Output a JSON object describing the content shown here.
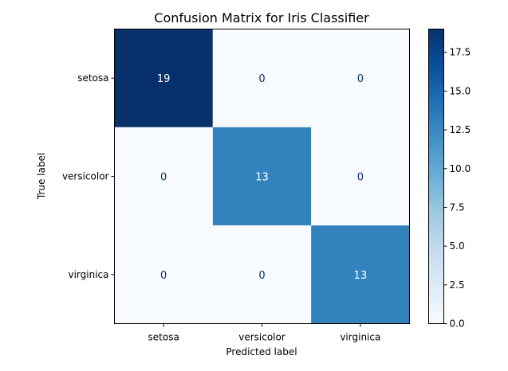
{
  "chart_data": {
    "type": "heatmap",
    "title": "Confusion Matrix for Iris Classifier",
    "xlabel": "Predicted label",
    "ylabel": "True label",
    "x_categories": [
      "setosa",
      "versicolor",
      "virginica"
    ],
    "y_categories": [
      "setosa",
      "versicolor",
      "virginica"
    ],
    "values": [
      [
        19,
        0,
        0
      ],
      [
        0,
        13,
        0
      ],
      [
        0,
        0,
        13
      ]
    ],
    "colormap": "Blues",
    "color_low": "#f7fbff",
    "color_high": "#08306b",
    "vmin": 0,
    "vmax": 19,
    "colorbar_ticks": [
      "0.0",
      "2.5",
      "5.0",
      "7.5",
      "10.0",
      "12.5",
      "15.0",
      "17.5"
    ]
  }
}
